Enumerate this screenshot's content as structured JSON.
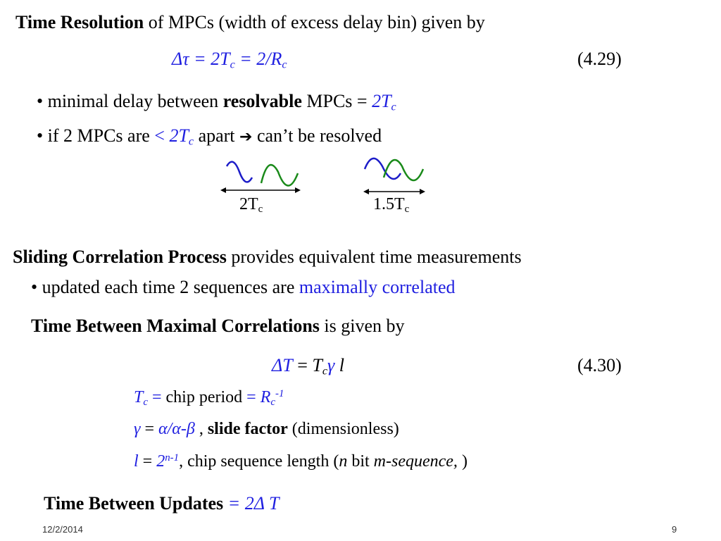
{
  "line1": {
    "bold": "Time Resolution",
    "rest": " of MPCs (width of excess delay bin) given by"
  },
  "eq1": {
    "delta": "Δ",
    "tau": "τ",
    "eq_a": " = 2",
    "T": "T",
    "c": "c",
    "eq_b": " = 2/",
    "R": "R",
    "c2": "c",
    "number": "(4.29)"
  },
  "bullet1": {
    "pre": "• minimal delay between ",
    "bold": "resolvable",
    "mid": " MPCs = ",
    "val": "2T",
    "sub": "c"
  },
  "bullet2": {
    "pre": "• if 2 MPCs are ",
    "lt": "< ",
    "val": "2T",
    "sub": "c",
    "post": " apart ",
    "arrow": "➔",
    "end": " can’t be resolved"
  },
  "wave_labels": [
    {
      "main": "2T",
      "sub": "c"
    },
    {
      "main": "1.5T",
      "sub": "c"
    }
  ],
  "line2": {
    "bold": "Sliding Correlation Process",
    "rest": " provides equivalent time measurements"
  },
  "bullet3": {
    "pre": "• updated each time 2 sequences are ",
    "blue": "maximally correlated"
  },
  "line3": {
    "bold": "Time Between Maximal Correlations",
    "rest": " is given by"
  },
  "eq2": {
    "delta": "Δ",
    "T": "T",
    "eq": " = ",
    "Tc_T": "T",
    "Tc_c": "c",
    "gamma": "γ",
    "l": " l",
    "number": "(4.30)"
  },
  "def1": {
    "T": "T",
    "c": "c",
    "eq": " = ",
    "text": "chip period",
    "eq2": " = ",
    "R": "R",
    "sub": "c",
    "sup": "-1"
  },
  "def2": {
    "gamma": "γ",
    "eq": " = ",
    "expr": "α/α-β",
    "comma": " , ",
    "bold": "slide factor",
    "rest": " (dimensionless)"
  },
  "def3": {
    "l": "l",
    "eq": " = ",
    "two": "2",
    "sup": "n-1",
    "rest": ", chip sequence length (",
    "n": "n",
    "bit": " bit ",
    "mseq": "m-sequence,",
    "close": "  )"
  },
  "line4": {
    "bold": "Time Between Updates",
    "eq": " = 2",
    "delta": "Δ",
    "T": " T"
  },
  "footer": {
    "date": "12/2/2014",
    "page": "9"
  },
  "colors": {
    "blue": "#2020e0",
    "wave_blue": "#1c1cc8",
    "wave_green": "#1a8a1a"
  }
}
